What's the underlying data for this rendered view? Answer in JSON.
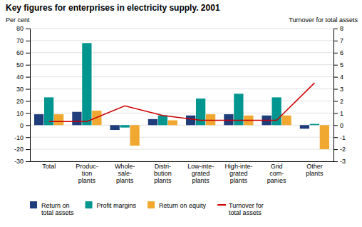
{
  "chart_data": {
    "type": "bar",
    "title": "Key figures for enterprises in electricity supply. 2001",
    "ylabel": "Per cent",
    "y2label": "Turnover for total assets",
    "categories": [
      "Total",
      "Produc-\ntion\nplants",
      "Whole-\nsale-\nplants",
      "Distri-\nbution\nplants",
      "Low-inte-\ngrated\nplants",
      "High-inte-\ngrated\nplants",
      "Grid\ncom-\npanies",
      "Other\nplants"
    ],
    "series": [
      {
        "name": "Return on\ntotal assets",
        "color": "#1f3d7a",
        "type": "bar",
        "values": [
          9,
          11,
          -4,
          5,
          8,
          9,
          8,
          -3
        ]
      },
      {
        "name": "Profit margins",
        "color": "#00968f",
        "type": "bar",
        "values": [
          23,
          68,
          -2,
          8,
          22,
          26,
          23,
          1
        ]
      },
      {
        "name": "Return on equity",
        "color": "#f0a830",
        "type": "bar",
        "values": [
          9,
          12,
          -17,
          4,
          9,
          8,
          8,
          -20
        ]
      },
      {
        "name": "Turnover for\ntotal assets",
        "color": "#cc0000",
        "type": "line",
        "axis": "y2",
        "values": [
          0.3,
          0.3,
          1.6,
          0.8,
          0.4,
          0.4,
          0.4,
          3.5
        ]
      }
    ],
    "ylim": [
      -30,
      80
    ],
    "yticks": [
      -30,
      -20,
      -10,
      0,
      10,
      20,
      30,
      40,
      50,
      60,
      70,
      80
    ],
    "y2lim": [
      -3,
      8
    ],
    "y2ticks": [
      -3,
      -2,
      -1,
      0,
      1,
      2,
      3,
      4,
      5,
      6,
      7,
      8
    ],
    "grid": true,
    "legend": "bottom"
  }
}
